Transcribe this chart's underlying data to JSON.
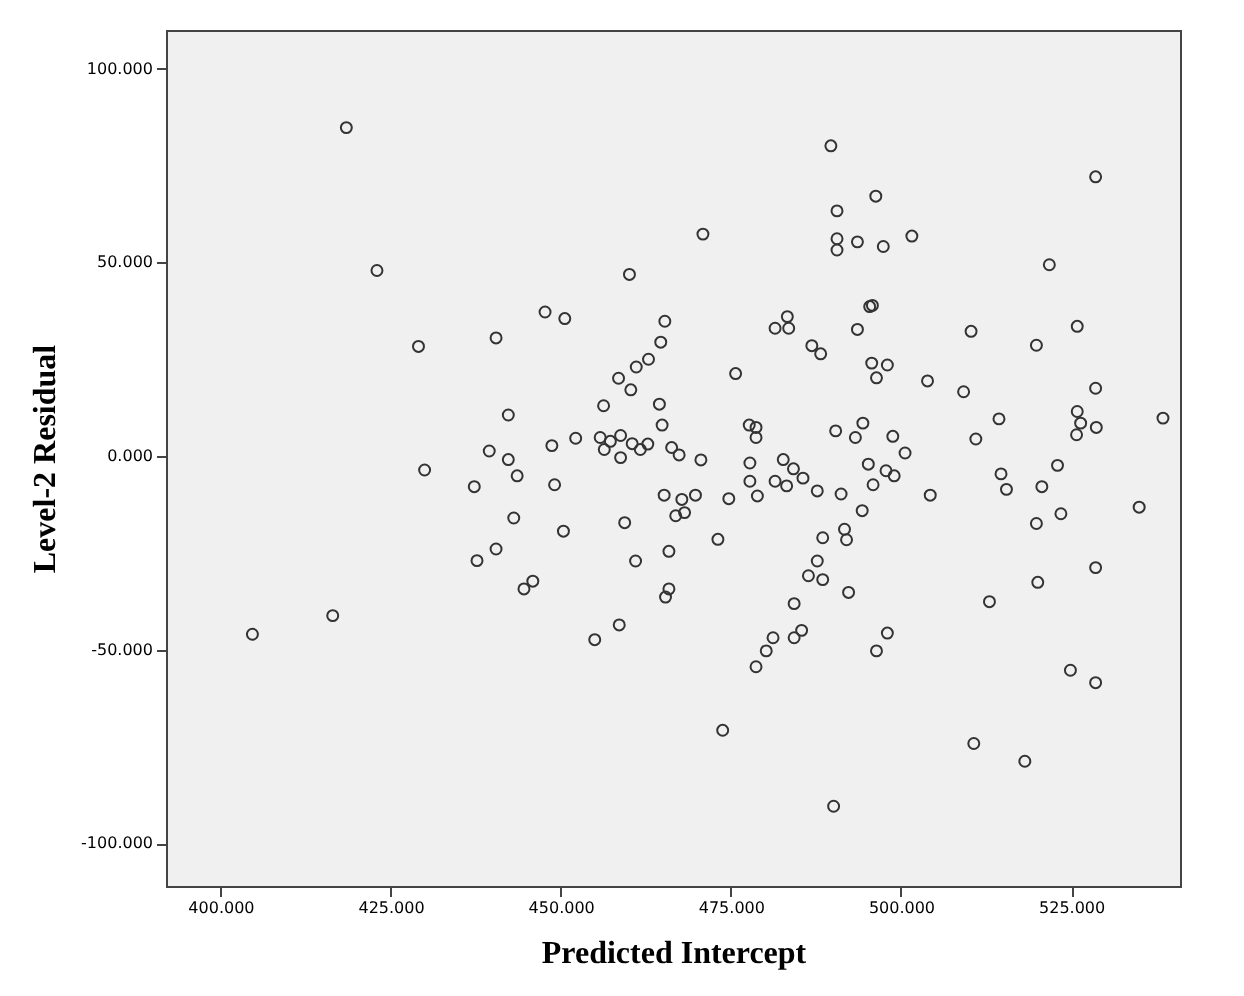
{
  "chart_data": {
    "type": "scatter",
    "xlabel": "Predicted Intercept",
    "ylabel": "Level-2 Residual",
    "marker": "circle",
    "grid": false,
    "xlim": [
      392,
      541
    ],
    "ylim": [
      -111,
      110
    ],
    "xticks": [
      {
        "value": 400,
        "label": "400.000"
      },
      {
        "value": 425,
        "label": "425.000"
      },
      {
        "value": 450,
        "label": "450.000"
      },
      {
        "value": 475,
        "label": "475.000"
      },
      {
        "value": 500,
        "label": "500.000"
      },
      {
        "value": 525,
        "label": "525.000"
      }
    ],
    "yticks": [
      {
        "value": -100,
        "label": "-100.000"
      },
      {
        "value": -50,
        "label": "-50.000"
      },
      {
        "value": 0,
        "label": "0.000"
      },
      {
        "value": 50,
        "label": "50.000"
      },
      {
        "value": 100,
        "label": "100.000"
      }
    ],
    "series": [
      {
        "color": "#333333",
        "x": [
          418.5,
          423.0,
          429.1,
          440.5,
          439.5,
          447.7,
          450.6,
          460.1,
          470.9,
          489.7,
          496.3,
          490.6,
          490.6,
          490.6,
          493.6,
          495.4,
          495.8,
          493.6,
          481.5,
          483.3,
          483.5,
          486.9,
          488.2,
          475.7,
          465.3,
          464.7,
          462.9,
          461.1,
          458.5,
          460.3,
          456.3,
          464.5,
          464.9,
          442.3,
          448.7,
          452.2,
          455.8,
          457.3,
          458.8,
          460.5,
          456.4,
          461.7,
          462.8,
          466.3,
          467.4,
          477.7,
          478.7,
          478.7,
          490.4,
          494.4,
          493.3,
          495.7,
          496.4,
          497.4,
          501.6,
          528.6,
          521.8,
          510.3,
          519.9,
          525.9,
          498.0,
          503.9,
          509.2,
          528.6,
          514.4,
          538.5,
          525.9,
          526.4,
          528.7,
          525.8,
          511.0,
          498.8,
          500.6,
          430.0,
          442.3,
          443.6,
          437.3,
          443.1,
          440.5,
          437.7,
          445.9,
          444.6,
          416.5,
          404.7,
          449.1,
          450.4,
          458.8,
          470.6,
          459.4,
          461.0,
          465.2,
          467.8,
          469.8,
          466.9,
          468.2,
          465.9,
          465.9,
          465.4,
          458.6,
          455.0,
          473.1,
          474.7,
          477.8,
          477.8,
          478.9,
          482.7,
          484.2,
          481.5,
          483.2,
          485.6,
          487.7,
          491.2,
          495.2,
          497.8,
          499.0,
          495.9,
          494.3,
          488.5,
          491.7,
          492.0,
          487.7,
          486.4,
          488.5,
          492.3,
          484.3,
          485.4,
          484.3,
          481.2,
          480.2,
          478.7,
          498.0,
          496.4,
          473.8,
          490.1,
          504.3,
          514.7,
          515.5,
          523.0,
          520.7,
          523.5,
          519.9,
          535.0,
          528.6,
          520.1,
          513.0,
          524.9,
          528.6,
          510.7,
          518.2
        ],
        "values": [
          84.8,
          47.9,
          28.3,
          30.5,
          1.3,
          37.2,
          35.5,
          46.9,
          57.3,
          80.1,
          67.1,
          63.3,
          56.1,
          53.2,
          55.3,
          38.6,
          38.9,
          32.7,
          33.0,
          36.0,
          33.0,
          28.5,
          26.4,
          21.3,
          34.8,
          29.4,
          25.0,
          23.0,
          20.1,
          17.1,
          13.0,
          13.4,
          8.0,
          10.6,
          2.7,
          4.6,
          4.8,
          3.8,
          5.3,
          3.2,
          1.7,
          1.7,
          3.1,
          2.2,
          0.3,
          8.0,
          7.4,
          4.8,
          6.5,
          8.5,
          4.8,
          24.0,
          20.2,
          54.1,
          56.8,
          72.1,
          49.4,
          32.2,
          28.6,
          33.5,
          23.5,
          19.4,
          16.6,
          17.5,
          9.6,
          9.8,
          11.5,
          8.5,
          7.4,
          5.5,
          4.4,
          5.1,
          0.8,
          -3.6,
          -0.9,
          -5.1,
          -7.9,
          -16.0,
          -24.0,
          -27.0,
          -32.3,
          -34.3,
          -41.2,
          -46.0,
          -7.4,
          -19.4,
          -0.4,
          -1.0,
          -17.2,
          -27.1,
          -10.1,
          -11.2,
          -10.1,
          -15.4,
          -14.6,
          -24.6,
          -34.3,
          -36.4,
          -43.6,
          -47.4,
          -21.5,
          -11.0,
          -1.8,
          -6.5,
          -10.3,
          -0.9,
          -3.3,
          -6.5,
          -7.7,
          -5.7,
          -9.0,
          -9.8,
          -2.1,
          -3.8,
          -5.1,
          -7.4,
          -14.1,
          -21.1,
          -18.9,
          -21.6,
          -27.1,
          -30.9,
          -31.9,
          -35.2,
          -38.1,
          -45.0,
          -46.9,
          -46.9,
          -50.3,
          -54.4,
          -45.7,
          -50.3,
          -70.8,
          -90.4,
          -10.1,
          -4.6,
          -8.6,
          -2.4,
          -7.9,
          -14.9,
          -17.4,
          -13.2,
          -28.8,
          -32.6,
          -37.6,
          -55.3,
          -58.5,
          -74.2,
          -78.8
        ]
      }
    ]
  }
}
